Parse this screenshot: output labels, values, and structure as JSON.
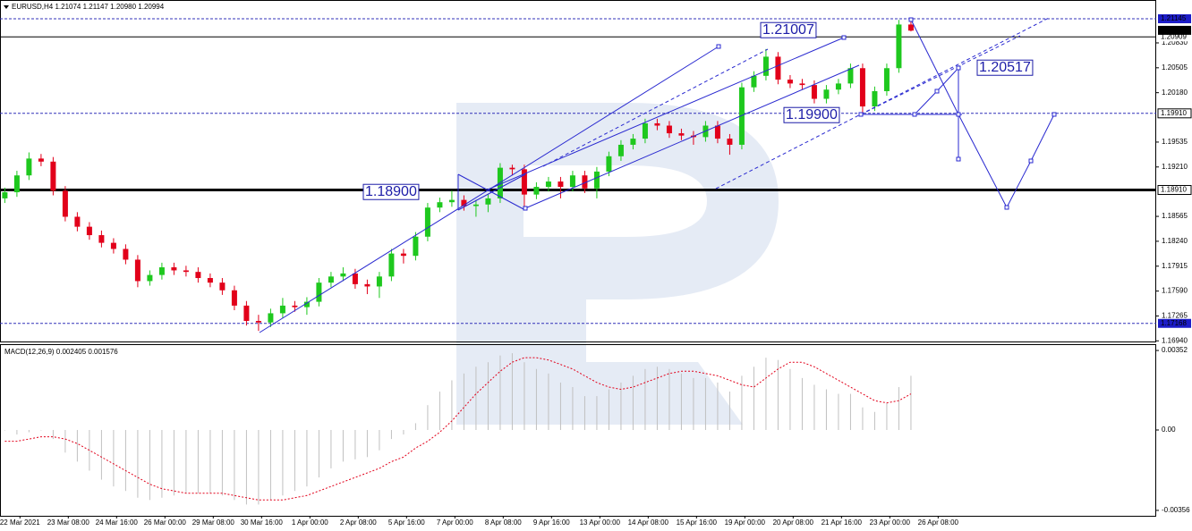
{
  "chart_data": {
    "type": "candlestick",
    "title": "EURUSD,H4  1.21074 1.21147 1.20980 1.20994",
    "up_color": "#1ec81e",
    "down_color": "#e2001a",
    "xlim": [
      -0.4,
      95.3
    ],
    "xticks": [
      {
        "value": 1.25,
        "label": "22 Mar 2021"
      },
      {
        "value": 5.25,
        "label": "23 Mar 08:00"
      },
      {
        "value": 9.25,
        "label": "24 Mar 16:00"
      },
      {
        "value": 13.25,
        "label": "26 Mar 00:00"
      },
      {
        "value": 17.25,
        "label": "29 Mar 08:00"
      },
      {
        "value": 21.25,
        "label": "30 Mar 16:00"
      },
      {
        "value": 25.25,
        "label": "1 Apr 00:00"
      },
      {
        "value": 29.25,
        "label": "2 Apr 08:00"
      },
      {
        "value": 33.25,
        "label": "5 Apr 16:00"
      },
      {
        "value": 37.25,
        "label": "7 Apr 00:00"
      },
      {
        "value": 41.25,
        "label": "8 Apr 08:00"
      },
      {
        "value": 45.25,
        "label": "9 Apr 16:00"
      },
      {
        "value": 49.25,
        "label": "13 Apr 00:00"
      },
      {
        "value": 53.25,
        "label": "14 Apr 08:00"
      },
      {
        "value": 57.25,
        "label": "15 Apr 16:00"
      },
      {
        "value": 61.25,
        "label": "19 Apr 00:00"
      },
      {
        "value": 65.25,
        "label": "20 Apr 08:00"
      },
      {
        "value": 69.25,
        "label": "21 Apr 16:00"
      },
      {
        "value": 73.25,
        "label": "23 Apr 00:00"
      },
      {
        "value": 77.25,
        "label": "26 Apr 08:00"
      }
    ],
    "ylim": [
      1.1692,
      1.2139
    ],
    "yticks": [
      {
        "value": 1.2083,
        "label": "1.20830"
      },
      {
        "value": 1.20505,
        "label": "1.20505"
      },
      {
        "value": 1.2018,
        "label": "1.20180"
      },
      {
        "value": 1.19535,
        "label": "1.19535"
      },
      {
        "value": 1.1921,
        "label": "1.19210"
      },
      {
        "value": 1.18565,
        "label": "1.18565"
      },
      {
        "value": 1.1824,
        "label": "1.18240"
      },
      {
        "value": 1.17915,
        "label": "1.17915"
      },
      {
        "value": 1.1759,
        "label": "1.17590"
      },
      {
        "value": 1.17265,
        "label": "1.17265"
      },
      {
        "value": 1.1694,
        "label": "1.16940"
      }
    ],
    "levels": [
      {
        "value": 1.21145,
        "label": "1.21145",
        "line": "dashed",
        "box": "blue"
      },
      {
        "value": 1.20909,
        "label": "1.20909",
        "line": "solid",
        "box": "none"
      },
      {
        "value": 1.20994,
        "label": "1.20994",
        "line": "none",
        "box": "black"
      },
      {
        "value": 1.1991,
        "label": "1.19910",
        "line": "dashed",
        "box": "outline"
      },
      {
        "value": 1.1891,
        "label": "1.18910",
        "line": "thick",
        "box": "outline"
      },
      {
        "value": 1.17168,
        "label": "1.17168",
        "line": "dashed",
        "box": "blue"
      }
    ],
    "annotations": [
      "1.21007",
      "1.20517",
      "1.19900",
      "1.18900"
    ],
    "open": [
      1.188,
      1.1888,
      1.191,
      1.1932,
      1.1928,
      1.189,
      1.1856,
      1.1843,
      1.1832,
      1.1822,
      1.1814,
      1.18,
      1.1772,
      1.178,
      1.179,
      1.1786,
      1.1784,
      1.1776,
      1.177,
      1.176,
      1.174,
      1.172,
      1.1718,
      1.173,
      1.174,
      1.1738,
      1.1745,
      1.177,
      1.1778,
      1.1782,
      1.1768,
      1.1765,
      1.1778,
      1.1808,
      1.1805,
      1.183,
      1.1868,
      1.1875,
      1.1878,
      1.187,
      1.1872,
      1.188,
      1.192,
      1.1918,
      1.1885,
      1.1895,
      1.1902,
      1.1895,
      1.191,
      1.1893,
      1.1915,
      1.1935,
      1.195,
      1.1958,
      1.1978,
      1.1975,
      1.1965,
      1.1962,
      1.196,
      1.1975,
      1.1958,
      1.195,
      1.2025,
      1.204,
      1.2065,
      1.2035,
      1.203,
      1.2028,
      1.201,
      1.2022,
      1.203,
      1.205,
      1.2,
      1.202,
      1.205,
      1.2107
    ],
    "high": [
      1.1894,
      1.1916,
      1.194,
      1.1938,
      1.1934,
      1.1896,
      1.1862,
      1.1849,
      1.1838,
      1.1828,
      1.182,
      1.1806,
      1.1786,
      1.1796,
      1.1796,
      1.1792,
      1.179,
      1.1782,
      1.1776,
      1.1766,
      1.1746,
      1.1728,
      1.1736,
      1.175,
      1.1746,
      1.1751,
      1.1776,
      1.1784,
      1.179,
      1.1788,
      1.1774,
      1.1784,
      1.1814,
      1.1814,
      1.1836,
      1.1874,
      1.1881,
      1.189,
      1.1884,
      1.1878,
      1.1886,
      1.1926,
      1.1924,
      1.1924,
      1.1901,
      1.1908,
      1.1908,
      1.1916,
      1.1916,
      1.1921,
      1.1941,
      1.1956,
      1.1964,
      1.1984,
      1.1984,
      1.1981,
      1.1971,
      1.1968,
      1.1981,
      1.1981,
      1.1964,
      1.2031,
      1.2046,
      1.2075,
      1.2071,
      1.2041,
      1.2036,
      1.2034,
      1.2028,
      1.2036,
      1.2056,
      1.2056,
      1.2026,
      1.2056,
      1.2113,
      1.2115
    ],
    "low": [
      1.1874,
      1.1882,
      1.1904,
      1.1922,
      1.1884,
      1.185,
      1.1837,
      1.1826,
      1.1816,
      1.1808,
      1.1794,
      1.1764,
      1.1766,
      1.1774,
      1.178,
      1.1778,
      1.177,
      1.1764,
      1.1754,
      1.1734,
      1.1714,
      1.1707,
      1.1712,
      1.1724,
      1.1732,
      1.1728,
      1.1739,
      1.1764,
      1.1772,
      1.1762,
      1.1755,
      1.175,
      1.1772,
      1.1795,
      1.1799,
      1.1824,
      1.1862,
      1.1869,
      1.1864,
      1.1856,
      1.1862,
      1.1874,
      1.191,
      1.187,
      1.1879,
      1.1889,
      1.188,
      1.1889,
      1.1887,
      1.188,
      1.1909,
      1.1929,
      1.1944,
      1.1952,
      1.1969,
      1.1959,
      1.1956,
      1.195,
      1.1954,
      1.1952,
      1.1937,
      1.1944,
      1.2019,
      1.2034,
      1.2029,
      1.2024,
      1.2022,
      1.2004,
      1.2004,
      1.2016,
      1.2024,
      1.199,
      1.1994,
      1.2014,
      1.2044,
      1.2098
    ],
    "close": [
      1.1888,
      1.191,
      1.1932,
      1.1928,
      1.189,
      1.1856,
      1.1843,
      1.1832,
      1.1822,
      1.1814,
      1.18,
      1.1772,
      1.178,
      1.179,
      1.1786,
      1.1784,
      1.1776,
      1.177,
      1.176,
      1.174,
      1.172,
      1.1718,
      1.173,
      1.174,
      1.1738,
      1.1745,
      1.177,
      1.1778,
      1.1782,
      1.1768,
      1.1765,
      1.1778,
      1.1808,
      1.1805,
      1.183,
      1.1868,
      1.1875,
      1.1878,
      1.187,
      1.1872,
      1.188,
      1.192,
      1.1918,
      1.1885,
      1.1895,
      1.1902,
      1.1895,
      1.191,
      1.1893,
      1.1915,
      1.1935,
      1.195,
      1.1958,
      1.1978,
      1.1975,
      1.1965,
      1.1962,
      1.196,
      1.1975,
      1.1958,
      1.195,
      1.2025,
      1.204,
      1.2065,
      1.2035,
      1.203,
      1.2028,
      1.201,
      1.2022,
      1.203,
      1.205,
      1.2,
      1.202,
      1.205,
      1.2107,
      1.2099
    ],
    "macd": {
      "label": "MACD(12,26,9) 0.002405 0.001576",
      "ylim": [
        -0.0038,
        0.00376
      ],
      "yticks": [
        0.00352,
        {
          "value": 0,
          "label": "0.00"
        },
        -0.00356
      ],
      "main_color": "#c0c0c0",
      "signal_color": "#e2001a",
      "main": [
        0,
        -0.0002,
        -0.0001,
        0,
        -0.0004,
        -0.001,
        -0.0014,
        -0.0018,
        -0.0022,
        -0.0025,
        -0.0027,
        -0.003,
        -0.0031,
        -0.003,
        -0.0029,
        -0.0028,
        -0.0028,
        -0.0028,
        -0.0029,
        -0.0031,
        -0.0033,
        -0.0033,
        -0.0031,
        -0.0029,
        -0.0027,
        -0.0025,
        -0.0021,
        -0.0017,
        -0.0014,
        -0.0013,
        -0.0012,
        -0.0009,
        -0.0004,
        -0.0002,
        0.0003,
        0.0011,
        0.0017,
        0.0022,
        0.0025,
        0.0028,
        0.003,
        0.0033,
        0.0034,
        0.003,
        0.0027,
        0.0025,
        0.0021,
        0.0019,
        0.0015,
        0.0015,
        0.0018,
        0.0021,
        0.0024,
        0.0027,
        0.0028,
        0.0027,
        0.0025,
        0.0023,
        0.0023,
        0.0021,
        0.0017,
        0.0024,
        0.0028,
        0.0032,
        0.0031,
        0.0027,
        0.0023,
        0.002,
        0.0018,
        0.0016,
        0.0016,
        0.001,
        0.0008,
        0.0012,
        0.0019,
        0.0024
      ],
      "signal": [
        -0.0005,
        -0.0005,
        -0.0004,
        -0.0003,
        -0.0003,
        -0.0004,
        -0.0006,
        -0.0009,
        -0.0012,
        -0.0015,
        -0.0018,
        -0.0021,
        -0.0024,
        -0.0026,
        -0.0027,
        -0.0028,
        -0.0028,
        -0.0028,
        -0.0028,
        -0.0029,
        -0.003,
        -0.0031,
        -0.0031,
        -0.0031,
        -0.003,
        -0.0029,
        -0.0027,
        -0.0025,
        -0.0023,
        -0.0021,
        -0.0019,
        -0.0017,
        -0.0014,
        -0.0012,
        -0.0008,
        -0.0005,
        -0.0001,
        0.0004,
        0.001,
        0.0016,
        0.0021,
        0.0026,
        0.003,
        0.0032,
        0.0032,
        0.0031,
        0.0029,
        0.0027,
        0.0024,
        0.0021,
        0.0019,
        0.0018,
        0.0019,
        0.0021,
        0.0023,
        0.0025,
        0.0026,
        0.0026,
        0.0025,
        0.0024,
        0.0022,
        0.002,
        0.0019,
        0.0023,
        0.0027,
        0.003,
        0.003,
        0.0028,
        0.0025,
        0.0022,
        0.0019,
        0.0016,
        0.0013,
        0.0012,
        0.0013,
        0.0016
      ]
    }
  }
}
